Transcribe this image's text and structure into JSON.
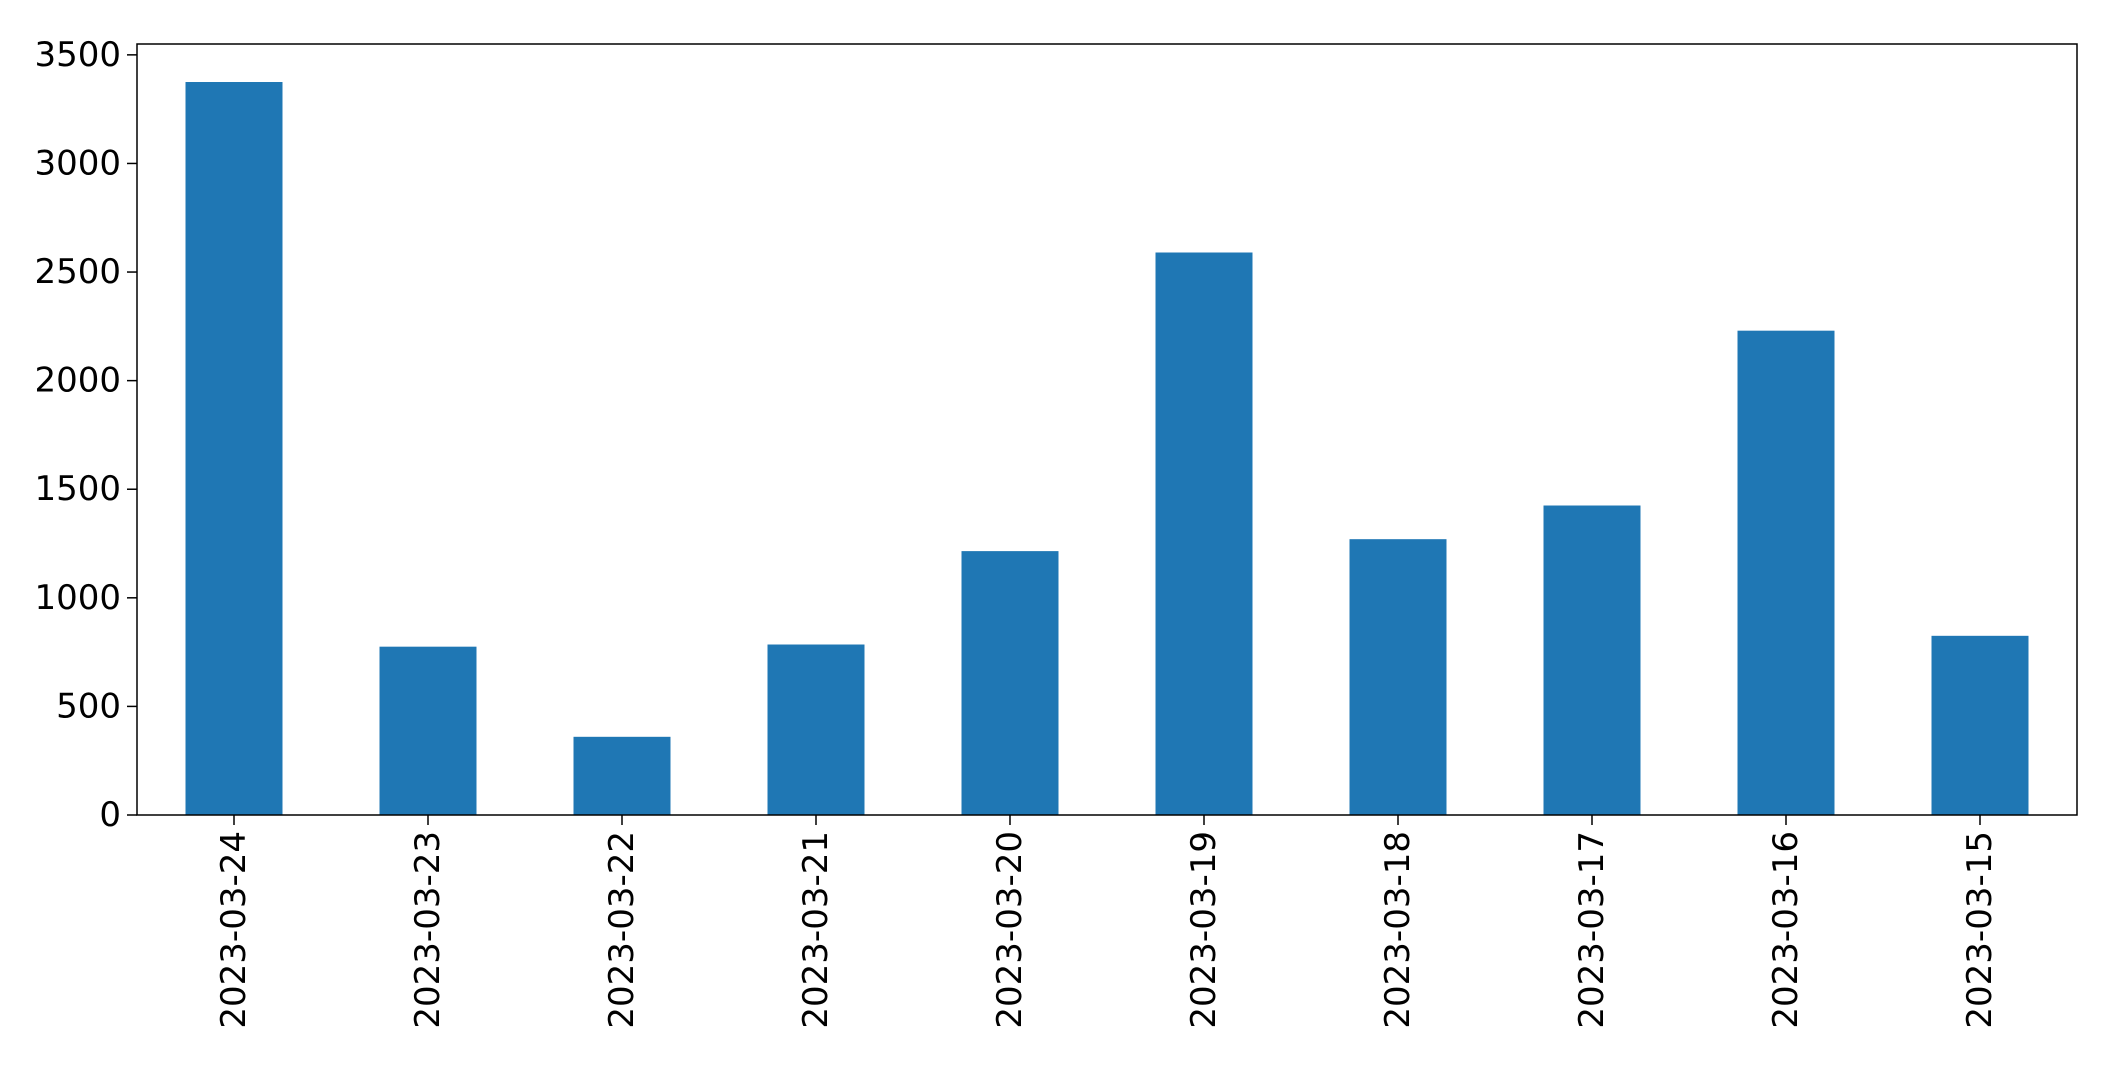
{
  "chart_data": {
    "type": "bar",
    "title": "",
    "xlabel": "",
    "ylabel": "",
    "categories": [
      "2023-03-24",
      "2023-03-23",
      "2023-03-22",
      "2023-03-21",
      "2023-03-20",
      "2023-03-19",
      "2023-03-18",
      "2023-03-17",
      "2023-03-16",
      "2023-03-15"
    ],
    "values": [
      3375,
      775,
      360,
      785,
      1215,
      2590,
      1270,
      1425,
      2230,
      825
    ],
    "ylim": [
      0,
      3550
    ],
    "yticks": [
      0,
      500,
      1000,
      1500,
      2000,
      2500,
      3000,
      3500
    ],
    "ytick_labels": [
      "0",
      "500",
      "1000",
      "1500",
      "2000",
      "2500",
      "3000",
      "3500"
    ],
    "bar_color": "#1f77b4",
    "grid": false,
    "legend": "none"
  }
}
